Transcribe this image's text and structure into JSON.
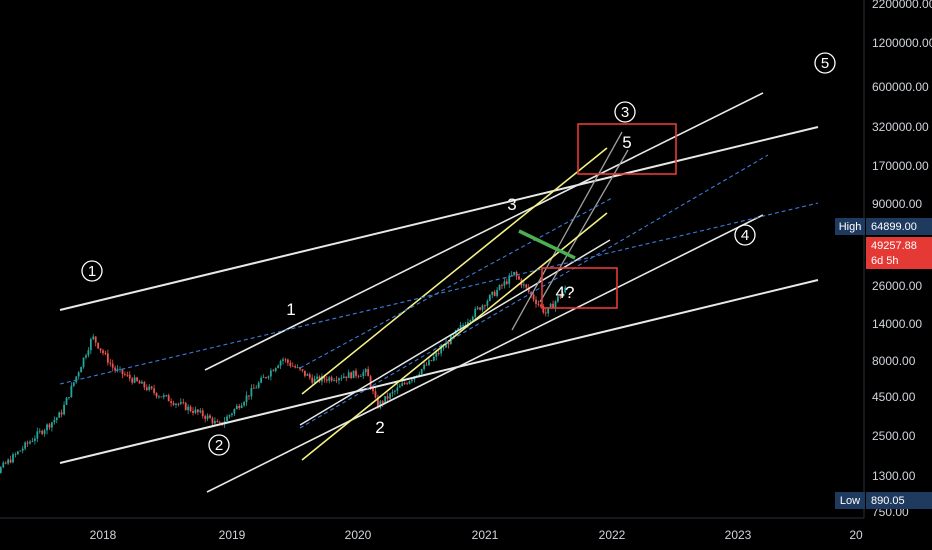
{
  "chart_data": {
    "type": "candlestick",
    "scale": "log",
    "grid": false,
    "y_ticks": [
      "2200000.00",
      "1200000.00",
      "600000.00",
      "320000.00",
      "170000.00",
      "90000.00",
      "26000.00",
      "14000.00",
      "8000.00",
      "4500.00",
      "2500.00",
      "1300.00",
      "750.00"
    ],
    "x_ticks": [
      "2018",
      "2019",
      "2020",
      "2021",
      "2022",
      "2023",
      "20"
    ],
    "price_badges": [
      {
        "label": "High",
        "value": "64899.00"
      },
      {
        "label": "",
        "value": "49257.88",
        "sub": "6d 5h"
      },
      {
        "label": "Low",
        "value": "890.05"
      }
    ],
    "wave_labels_circled": [
      "1",
      "2",
      "3",
      "4",
      "5"
    ],
    "wave_labels_plain": [
      "1",
      "2",
      "3",
      "5",
      "4?"
    ],
    "price_series": {
      "date_range": [
        "2017-01",
        "2021-09"
      ],
      "approx_monthly_close": [
        {
          "date": "2017-01",
          "close": 970
        },
        {
          "date": "2017-06",
          "close": 2500
        },
        {
          "date": "2017-09",
          "close": 4300
        },
        {
          "date": "2017-12",
          "close": 19000
        },
        {
          "date": "2018-02",
          "close": 10300
        },
        {
          "date": "2018-06",
          "close": 6400
        },
        {
          "date": "2018-11",
          "close": 4000
        },
        {
          "date": "2018-12",
          "close": 3400
        },
        {
          "date": "2019-06",
          "close": 12500
        },
        {
          "date": "2019-09",
          "close": 8200
        },
        {
          "date": "2020-02",
          "close": 9600
        },
        {
          "date": "2020-03",
          "close": 5000
        },
        {
          "date": "2020-08",
          "close": 11600
        },
        {
          "date": "2020-12",
          "close": 29000
        },
        {
          "date": "2021-04",
          "close": 64000
        },
        {
          "date": "2021-07",
          "close": 30000
        },
        {
          "date": "2021-09",
          "close": 49257.88
        }
      ]
    }
  },
  "colors": {
    "background": "#000000",
    "up_candle": "#26a69a",
    "down_candle": "#ef5350",
    "trend_line": "#e6e9e6",
    "channel_line": "#f3f084",
    "dashed_line": "#3d7bd8",
    "target_box": "#e53935",
    "green_line": "#4caf50",
    "badge_blue": "#1e3a5f",
    "badge_red": "#e53935"
  }
}
